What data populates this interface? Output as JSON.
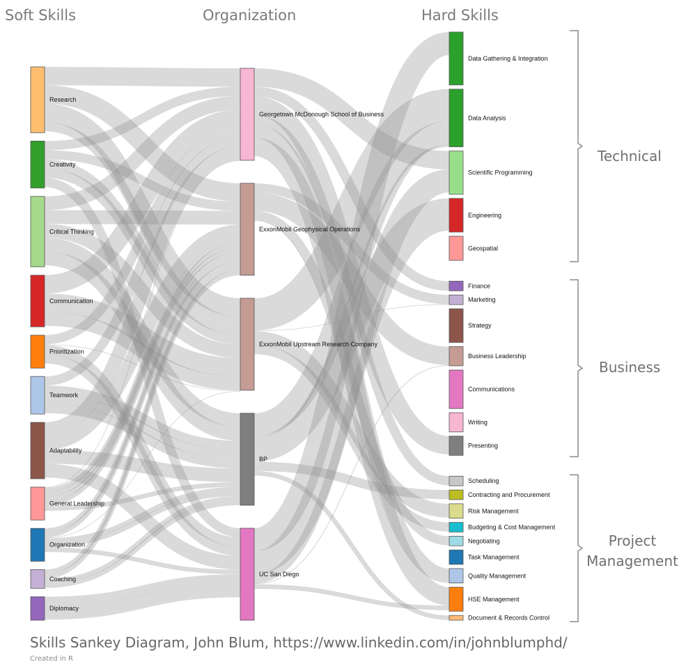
{
  "headers": {
    "soft": "Soft Skills",
    "org": "Organization",
    "hard": "Hard Skills"
  },
  "groups": {
    "technical": "Technical",
    "business": "Business",
    "project_1": "Project",
    "project_2": "Management"
  },
  "footer": {
    "title": "Skills Sankey Diagram, John Blum, https://www.linkedin.com/in/johnblumphd/",
    "subtitle": "Created in R"
  },
  "sankey": {
    "soft": [
      {
        "label": "Research",
        "value": 14,
        "color": "#fdbf6f"
      },
      {
        "label": "Creativity",
        "value": 10,
        "color": "#33a02c"
      },
      {
        "label": "Critical Thinking",
        "value": 15,
        "color": "#a6d98a"
      },
      {
        "label": "Communication",
        "value": 11,
        "color": "#d62728"
      },
      {
        "label": "Prioritization",
        "value": 7,
        "color": "#ff7f0e"
      },
      {
        "label": "Teamwork",
        "value": 8,
        "color": "#aec7e8"
      },
      {
        "label": "Adaptability",
        "value": 12,
        "color": "#8c564b"
      },
      {
        "label": "General Leadership",
        "value": 7,
        "color": "#ff9896"
      },
      {
        "label": "Organization",
        "value": 7,
        "color": "#1f77b4"
      },
      {
        "label": "Coaching",
        "value": 4,
        "color": "#c5b0d5"
      },
      {
        "label": "Diplomacy",
        "value": 5,
        "color": "#9467bd"
      }
    ],
    "org": [
      {
        "label": "Georgetown McDonough School of Business",
        "value": 20,
        "color": "#f7b6d2"
      },
      {
        "label": "ExxonMobil Geophysical Operations",
        "value": 20,
        "color": "#c49c94"
      },
      {
        "label": "ExxonMobil Upstream Research Company",
        "value": 20,
        "color": "#c49c94"
      },
      {
        "label": "BP",
        "value": 20,
        "color": "#7f7f7f"
      },
      {
        "label": "UC San Diego",
        "value": 20,
        "color": "#e377c2"
      }
    ],
    "hard": [
      {
        "label": "Data Gathering & Integration",
        "value": 11,
        "color": "#2ca02c",
        "group": "technical"
      },
      {
        "label": "Data Analysis",
        "value": 12,
        "color": "#2ca02c",
        "group": "technical"
      },
      {
        "label": "Scientific Programming",
        "value": 9,
        "color": "#98df8a",
        "group": "technical"
      },
      {
        "label": "Engineering",
        "value": 7,
        "color": "#d62728",
        "group": "technical"
      },
      {
        "label": "Geospatial",
        "value": 5,
        "color": "#ff9896",
        "group": "technical"
      },
      {
        "label": "Finance",
        "value": 2,
        "color": "#9467bd",
        "group": "business"
      },
      {
        "label": "Marketing",
        "value": 2,
        "color": "#c5b0d5",
        "group": "business"
      },
      {
        "label": "Strategy",
        "value": 7,
        "color": "#8c564b",
        "group": "business"
      },
      {
        "label": "Business Leadership",
        "value": 4,
        "color": "#c49c94",
        "group": "business"
      },
      {
        "label": "Communications",
        "value": 8,
        "color": "#e377c2",
        "group": "business"
      },
      {
        "label": "Writing",
        "value": 4,
        "color": "#f7b6d2",
        "group": "business"
      },
      {
        "label": "Presenting",
        "value": 4,
        "color": "#7f7f7f",
        "group": "business"
      },
      {
        "label": "Scheduling",
        "value": 2,
        "color": "#c7c7c7",
        "group": "project"
      },
      {
        "label": "Contracting and Procurement",
        "value": 2,
        "color": "#bcbd22",
        "group": "project"
      },
      {
        "label": "Risk Management",
        "value": 3,
        "color": "#dbdb8d",
        "group": "project"
      },
      {
        "label": "Budgeting & Cost Management",
        "value": 2,
        "color": "#17becf",
        "group": "project"
      },
      {
        "label": "Negotiating",
        "value": 2,
        "color": "#9edae5",
        "group": "project"
      },
      {
        "label": "Task Management",
        "value": 3,
        "color": "#1f77b4",
        "group": "project"
      },
      {
        "label": "Quality Management",
        "value": 3,
        "color": "#aec7e8",
        "group": "project"
      },
      {
        "label": "HSE Management",
        "value": 5,
        "color": "#ff7f0e",
        "group": "project"
      },
      {
        "label": "Document & Records Control",
        "value": 1,
        "color": "#ffbb78",
        "group": "project"
      }
    ]
  }
}
